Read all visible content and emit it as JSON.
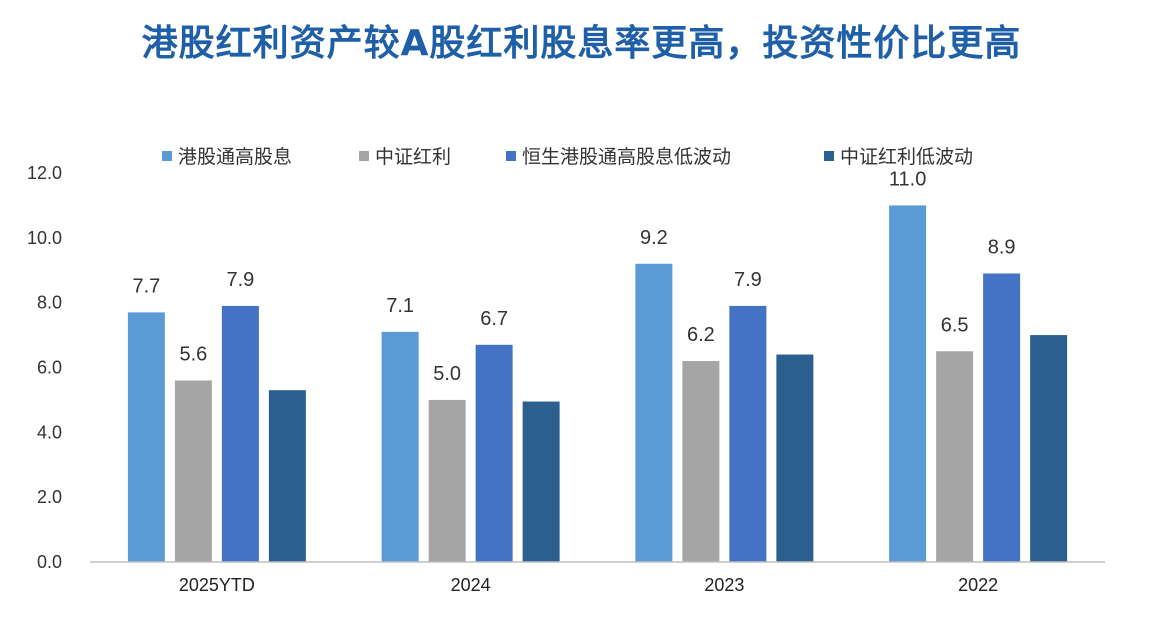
{
  "chart_data": {
    "type": "bar",
    "title": "港股红利资产较A股红利股息率更高，投资性价比更高",
    "categories": [
      "2025YTD",
      "2024",
      "2023",
      "2022"
    ],
    "series": [
      {
        "name": "港股通高股息",
        "color": "#5b9bd5",
        "values": [
          7.7,
          7.1,
          9.2,
          11.0
        ],
        "labels": [
          "7.7",
          "7.1",
          "9.2",
          "11.0"
        ]
      },
      {
        "name": "中证红利",
        "color": "#a5a5a5",
        "values": [
          5.6,
          5.0,
          6.2,
          6.5
        ],
        "labels": [
          "5.6",
          "5.0",
          "6.2",
          "6.5"
        ]
      },
      {
        "name": "恒生港股通高股息低波动",
        "color": "#4472c4",
        "values": [
          7.9,
          6.7,
          7.9,
          8.9
        ],
        "labels": [
          "7.9",
          "6.7",
          "7.9",
          "8.9"
        ]
      },
      {
        "name": "中证红利低波动",
        "color": "#2a5f8f",
        "values": [
          5.3,
          4.95,
          6.4,
          7.0
        ],
        "labels": [
          null,
          null,
          null,
          null
        ]
      }
    ],
    "yticks": [
      "0.0",
      "2.0",
      "4.0",
      "6.0",
      "8.0",
      "10.0",
      "12.0"
    ],
    "ylim": [
      0,
      12
    ],
    "legend_position": "top",
    "grid": false
  }
}
